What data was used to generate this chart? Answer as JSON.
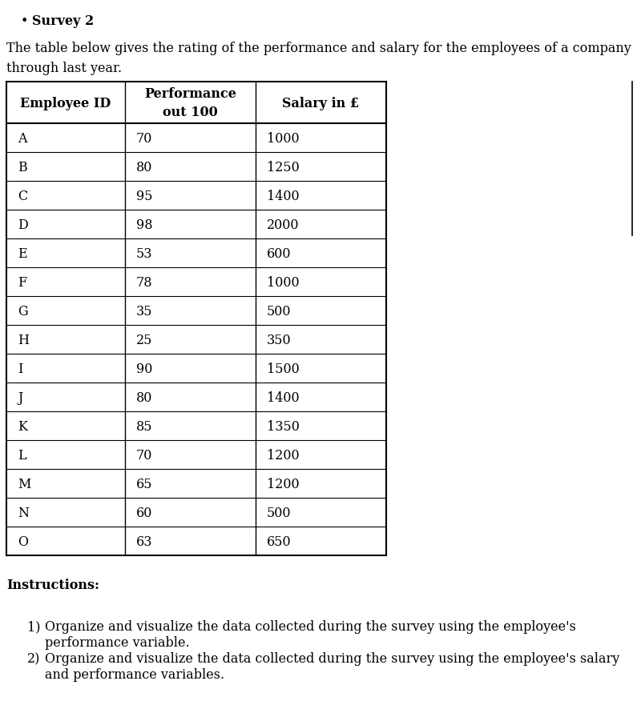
{
  "title_bullet": "Survey 2",
  "intro_text": "The table below gives the rating of the performance and salary for the employees of a company\nthrough last year.",
  "col_headers": [
    "Employee ID",
    "Performance\nout 100",
    "Salary in £"
  ],
  "employees": [
    "A",
    "B",
    "C",
    "D",
    "E",
    "F",
    "G",
    "H",
    "I",
    "J",
    "K",
    "L",
    "M",
    "N",
    "O"
  ],
  "performance": [
    70,
    80,
    95,
    98,
    53,
    78,
    35,
    25,
    90,
    80,
    85,
    70,
    65,
    60,
    63
  ],
  "salary": [
    1000,
    1250,
    1400,
    2000,
    600,
    1000,
    500,
    350,
    1500,
    1400,
    1350,
    1200,
    1200,
    500,
    650
  ],
  "instructions_title": "Instructions:",
  "instruction_1_line1": "Organize and visualize the data collected during the survey using the employee's",
  "instruction_1_line2": "performance variable.",
  "instruction_2_line1": "Organize and visualize the data collected during the survey using the employee's salary",
  "instruction_2_line2": "and performance variables.",
  "bg_color": "#ffffff",
  "text_color": "#000000"
}
